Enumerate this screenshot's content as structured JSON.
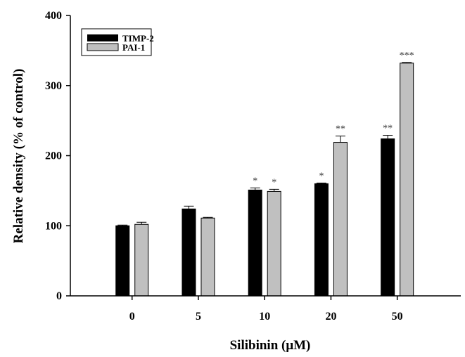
{
  "chart_data": {
    "type": "bar",
    "title": "",
    "xlabel": "Silibinin (μM)",
    "ylabel": "Relative density (% of control)",
    "categories": [
      "0",
      "5",
      "10",
      "20",
      "50"
    ],
    "ylim": [
      0,
      400
    ],
    "yticks": [
      "0",
      "100",
      "200",
      "300",
      "400"
    ],
    "grid": false,
    "legend_position": "top-left",
    "series": [
      {
        "name": "TIMP-2",
        "color": "#000000",
        "values": [
          100,
          124,
          151,
          160,
          224
        ],
        "errors": [
          1,
          4,
          3,
          1,
          5
        ],
        "significance": [
          "",
          "",
          "*",
          "*",
          "**"
        ]
      },
      {
        "name": "PAI-1",
        "color": "#c0c0c0",
        "values": [
          102,
          111,
          149,
          219,
          332
        ],
        "errors": [
          3,
          1,
          3,
          9,
          1
        ],
        "significance": [
          "",
          "",
          "*",
          "**",
          "***"
        ]
      }
    ]
  }
}
